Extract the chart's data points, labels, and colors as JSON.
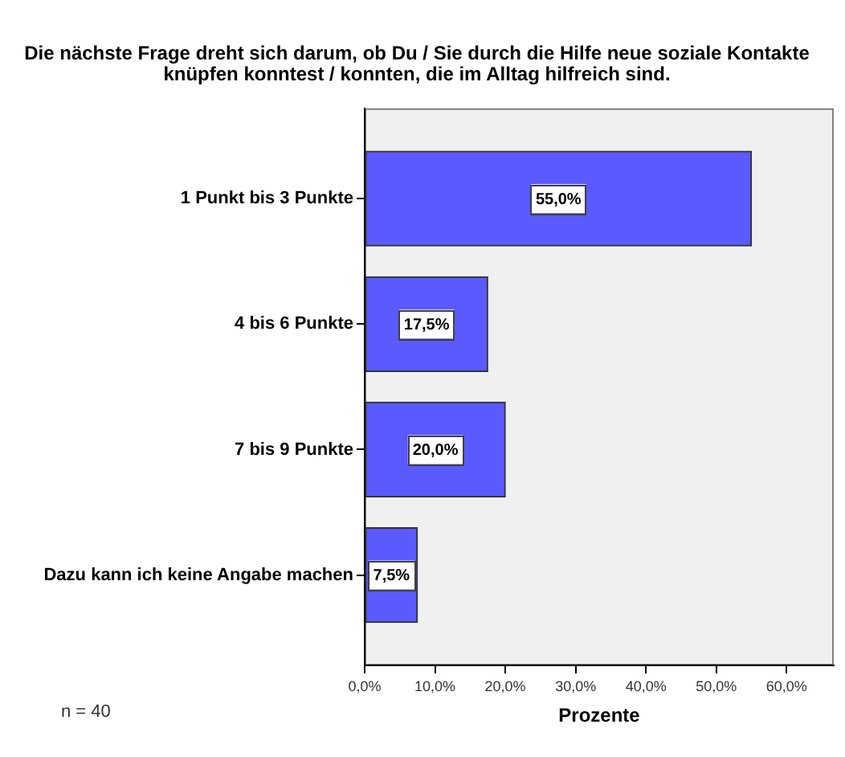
{
  "chart_data": {
    "type": "bar",
    "orientation": "horizontal",
    "title": "Die nächste Frage dreht sich darum, ob Du / Sie durch die Hilfe neue soziale Kontakte knüpfen konntest / konnten, die im Alltag hilfreich sind.",
    "xlabel": "Prozente",
    "categories": [
      "1 Punkt bis 3 Punkte",
      "4 bis 6 Punkte",
      "7 bis 9 Punkte",
      "Dazu kann ich keine Angabe machen"
    ],
    "values": [
      55.0,
      17.5,
      20.0,
      7.5
    ],
    "color": "#5a5aff",
    "value_labels": [
      "55,0%",
      "17,5%",
      "20,0%",
      "7,5%"
    ],
    "xlim": [
      0,
      66.7
    ],
    "xticks": [
      {
        "value": 0,
        "label": "0,0%"
      },
      {
        "value": 10,
        "label": "10,0%"
      },
      {
        "value": 20,
        "label": "20,0%"
      },
      {
        "value": 30,
        "label": "30,0%"
      },
      {
        "value": 40,
        "label": "40,0%"
      },
      {
        "value": 50,
        "label": "50,0%"
      },
      {
        "value": 60,
        "label": "60,0%"
      }
    ],
    "grid": false,
    "legend": false,
    "annotations": [
      "n = 40"
    ]
  }
}
